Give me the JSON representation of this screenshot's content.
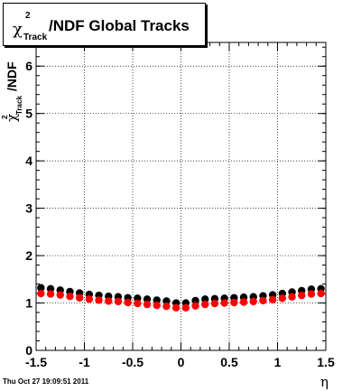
{
  "title": {
    "chi": "χ",
    "sup": "2",
    "sub": "Track",
    "rest": "/NDF  Global Tracks"
  },
  "footer": "Thu Oct 27 19:09:51 2011",
  "ylabel": {
    "chi": "χ",
    "sup": "2",
    "sub": "Track",
    "rest": "/NDF"
  },
  "chart_data": {
    "type": "scatter",
    "xlabel": "η",
    "xlim": [
      -1.5,
      1.5
    ],
    "ylim": [
      0,
      6.5
    ],
    "xticks": [
      -1.5,
      -1,
      -0.5,
      0,
      0.5,
      1,
      1.5
    ],
    "xtick_labels": [
      "-1.5",
      "-1",
      "-0.5",
      "0",
      "0.5",
      "1",
      "1.5"
    ],
    "yticks": [
      0,
      1,
      2,
      3,
      4,
      5,
      6
    ],
    "ytick_labels": [
      "0",
      "1",
      "2",
      "3",
      "4",
      "5",
      "6"
    ],
    "grid": true,
    "series": [
      {
        "color": "#000000",
        "x": [
          -1.45,
          -1.35,
          -1.25,
          -1.15,
          -1.05,
          -0.95,
          -0.85,
          -0.75,
          -0.65,
          -0.55,
          -0.45,
          -0.35,
          -0.25,
          -0.15,
          -0.05,
          0.05,
          0.15,
          0.25,
          0.35,
          0.45,
          0.55,
          0.65,
          0.75,
          0.85,
          0.95,
          1.05,
          1.15,
          1.25,
          1.35,
          1.45
        ],
        "y": [
          1.32,
          1.3,
          1.27,
          1.24,
          1.21,
          1.18,
          1.16,
          1.14,
          1.13,
          1.11,
          1.1,
          1.08,
          1.06,
          1.04,
          1.0,
          1.0,
          1.05,
          1.08,
          1.09,
          1.1,
          1.11,
          1.12,
          1.13,
          1.15,
          1.17,
          1.2,
          1.23,
          1.26,
          1.29,
          1.3
        ]
      },
      {
        "color": "#ff0000",
        "x": [
          -1.45,
          -1.35,
          -1.25,
          -1.15,
          -1.05,
          -0.95,
          -0.85,
          -0.75,
          -0.65,
          -0.55,
          -0.45,
          -0.35,
          -0.25,
          -0.15,
          -0.05,
          0.05,
          0.15,
          0.25,
          0.35,
          0.45,
          0.55,
          0.65,
          0.75,
          0.85,
          0.95,
          1.05,
          1.15,
          1.25,
          1.35,
          1.45
        ],
        "y": [
          1.2,
          1.19,
          1.17,
          1.14,
          1.11,
          1.08,
          1.06,
          1.04,
          1.03,
          1.01,
          0.99,
          0.97,
          0.95,
          0.93,
          0.9,
          0.9,
          0.94,
          0.97,
          0.99,
          1.0,
          1.01,
          1.02,
          1.03,
          1.05,
          1.07,
          1.1,
          1.13,
          1.16,
          1.19,
          1.2
        ]
      }
    ]
  }
}
